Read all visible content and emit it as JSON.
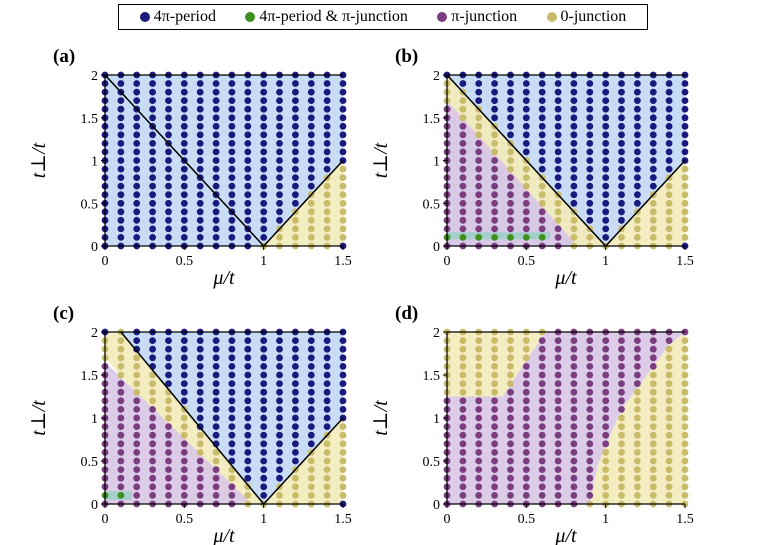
{
  "legend": {
    "items": [
      {
        "label": "4π-period",
        "color": "#1a1a7e"
      },
      {
        "label": "4π-period & π-junction",
        "color": "#3e8f1e"
      },
      {
        "label": "π-junction",
        "color": "#7a3d80"
      },
      {
        "label": "0-junction",
        "color": "#c8bb6a"
      }
    ]
  },
  "colors": {
    "blue_region": "#c3d8f4",
    "purple_region": "#d9c6e6",
    "yellow_region": "#f3ebba",
    "green_region": "#9fcfc4"
  },
  "chart_data": [
    {
      "panel": "(a)",
      "type": "scatter",
      "xlabel": "μ/t",
      "ylabel": "t⊥/t",
      "xlim": [
        0,
        1.5
      ],
      "ylim": [
        0,
        2
      ],
      "xticks": [
        "0",
        "0.5",
        "1",
        "1.5"
      ],
      "yticks": [
        "0",
        "0.5",
        "1",
        "1.5",
        "2"
      ],
      "grid_step": {
        "mu": 0.1,
        "t_perp": 0.1
      },
      "regions": [
        {
          "phase": "4π-period",
          "polygon": [
            [
              0,
              0
            ],
            [
              1,
              0
            ],
            [
              1.5,
              1
            ],
            [
              1.5,
              2
            ],
            [
              0,
              2
            ]
          ]
        },
        {
          "phase": "0-junction",
          "polygon": [
            [
              1,
              0
            ],
            [
              1.5,
              0
            ],
            [
              1.5,
              1
            ]
          ]
        }
      ],
      "boundaries": [
        [
          [
            0,
            2
          ],
          [
            1,
            0
          ],
          [
            1.5,
            1
          ]
        ]
      ]
    },
    {
      "panel": "(b)",
      "type": "scatter",
      "xlabel": "μ/t",
      "ylabel": "t⊥/t",
      "xlim": [
        0,
        1.5
      ],
      "ylim": [
        0,
        2
      ],
      "xticks": [
        "0",
        "0.5",
        "1",
        "1.5"
      ],
      "yticks": [
        "0",
        "0.5",
        "1",
        "1.5",
        "2"
      ],
      "grid_step": {
        "mu": 0.1,
        "t_perp": 0.1
      },
      "regions": [
        {
          "phase": "4π-period",
          "polygon": [
            [
              0,
              2
            ],
            [
              1.5,
              2
            ],
            [
              1.5,
              1
            ],
            [
              1,
              0
            ],
            [
              0.8,
              0
            ],
            [
              0,
              0
            ]
          ]
        },
        {
          "phase": "0-junction",
          "polygon": [
            [
              0,
              2
            ],
            [
              1,
              0
            ],
            [
              0.8,
              0
            ],
            [
              0,
              1.6
            ]
          ]
        },
        {
          "phase": "0-junction",
          "polygon": [
            [
              1,
              0
            ],
            [
              1.5,
              0
            ],
            [
              1.5,
              1
            ]
          ]
        },
        {
          "phase": "π-junction",
          "polygon": [
            [
              0,
              0
            ],
            [
              0,
              1.7
            ],
            [
              0.8,
              0.05
            ],
            [
              0.75,
              0
            ]
          ]
        },
        {
          "phase": "4π-period & π-junction",
          "polygon": [
            [
              0,
              0.08
            ],
            [
              0.65,
              0.08
            ],
            [
              0.65,
              0.16
            ],
            [
              0,
              0.16
            ]
          ]
        }
      ],
      "boundaries": [
        [
          [
            0,
            2
          ],
          [
            1,
            0
          ],
          [
            1.5,
            1
          ]
        ]
      ]
    },
    {
      "panel": "(c)",
      "type": "scatter",
      "xlabel": "μ/t",
      "ylabel": "t⊥/t",
      "xlim": [
        0,
        1.5
      ],
      "ylim": [
        0,
        2
      ],
      "xticks": [
        "0",
        "0.5",
        "1",
        "1.5"
      ],
      "yticks": [
        "0",
        "0.5",
        "1",
        "1.5",
        "2"
      ],
      "grid_step": {
        "mu": 0.1,
        "t_perp": 0.1
      },
      "regions": [
        {
          "phase": "4π-period",
          "polygon": [
            [
              0.1,
              2
            ],
            [
              1.5,
              2
            ],
            [
              1.5,
              1
            ],
            [
              1,
              0
            ],
            [
              0.95,
              0
            ]
          ]
        },
        {
          "phase": "0-junction",
          "polygon": [
            [
              0,
              2
            ],
            [
              0.1,
              2
            ],
            [
              1,
              0
            ],
            [
              0.8,
              0
            ],
            [
              0,
              1.7
            ]
          ]
        },
        {
          "phase": "0-junction",
          "polygon": [
            [
              1,
              0
            ],
            [
              1.5,
              0
            ],
            [
              1.5,
              1
            ]
          ]
        },
        {
          "phase": "π-junction",
          "polygon": [
            [
              0,
              0
            ],
            [
              0,
              1.65
            ],
            [
              0.9,
              0.05
            ],
            [
              0.85,
              0
            ]
          ]
        },
        {
          "phase": "4π-period & π-junction",
          "polygon": [
            [
              0,
              0.05
            ],
            [
              0.17,
              0.05
            ],
            [
              0.17,
              0.15
            ],
            [
              0,
              0.15
            ]
          ]
        }
      ],
      "boundaries": [
        [
          [
            0.1,
            2
          ],
          [
            1,
            0
          ],
          [
            1.5,
            1
          ]
        ]
      ]
    },
    {
      "panel": "(d)",
      "type": "scatter",
      "xlabel": "μ/t",
      "ylabel": "t⊥/t",
      "xlim": [
        0,
        1.5
      ],
      "ylim": [
        0,
        2
      ],
      "xticks": [
        "0",
        "0.5",
        "1",
        "1.5"
      ],
      "yticks": [
        "0",
        "0.5",
        "1",
        "1.5",
        "2"
      ],
      "grid_step": {
        "mu": 0.1,
        "t_perp": 0.1
      },
      "regions": [
        {
          "phase": "0-junction",
          "polygon": [
            [
              0,
              2
            ],
            [
              0,
              1.25
            ],
            [
              0.35,
              1.25
            ],
            [
              0.62,
              2
            ]
          ]
        },
        {
          "phase": "0-junction",
          "polygon": [
            [
              0.9,
              0
            ],
            [
              1.5,
              0
            ],
            [
              1.5,
              2
            ],
            [
              1.4,
              1.85
            ],
            [
              1.1,
              1.1
            ],
            [
              0.95,
              0.45
            ]
          ]
        },
        {
          "phase": "π-junction",
          "polygon": [
            [
              0,
              0
            ],
            [
              0.9,
              0
            ],
            [
              0.95,
              0.45
            ],
            [
              1.1,
              1.1
            ],
            [
              1.4,
              1.85
            ],
            [
              1.5,
              2
            ],
            [
              0.62,
              2
            ],
            [
              0.35,
              1.25
            ],
            [
              0,
              1.25
            ]
          ]
        }
      ],
      "boundaries": []
    }
  ]
}
